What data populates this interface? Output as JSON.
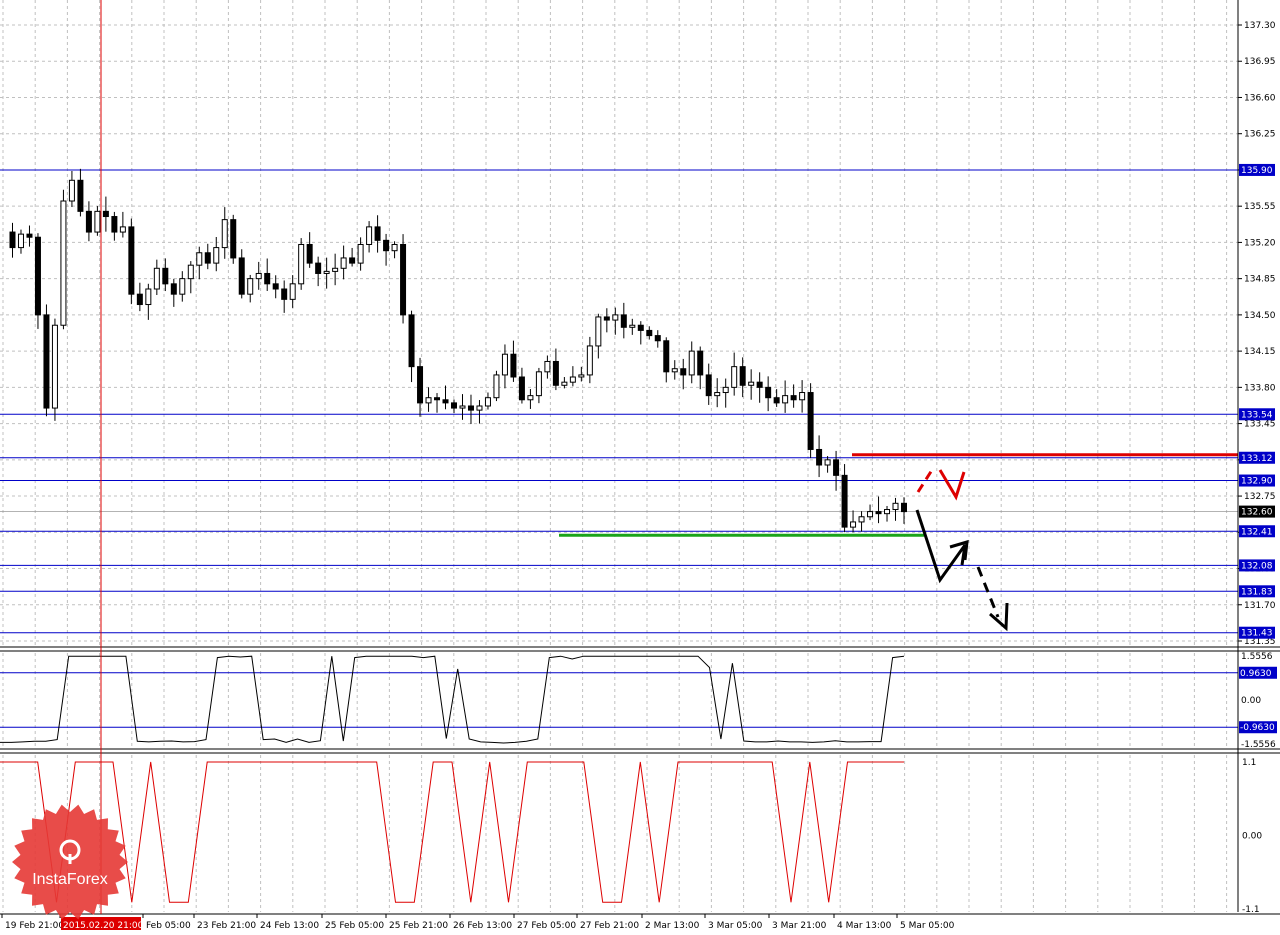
{
  "colors": {
    "grid": "#c0c0c0",
    "level_line": "#0000c8",
    "level_label_bg": "#0000c8",
    "current_label_bg": "#000000",
    "resistance": "#dd0000",
    "support": "#1aa31a",
    "oscillator": "#000000",
    "signal": "#dd0000",
    "cursor": "#dd0000",
    "logo": "#e53935"
  },
  "chart_data": [
    {
      "type": "candlestick",
      "panel": "price",
      "y_ticks": [
        "137.30",
        "136.95",
        "136.60",
        "136.25",
        "135.90",
        "135.55",
        "135.20",
        "134.85",
        "134.50",
        "134.15",
        "133.80",
        "133.45",
        "133.10",
        "132.75",
        "132.40",
        "132.05",
        "131.70",
        "131.35"
      ],
      "ylim": [
        131.35,
        137.3
      ],
      "levels": [
        "135.90",
        "133.54",
        "133.12",
        "132.90",
        "132.41",
        "132.08",
        "131.83",
        "131.43"
      ],
      "current_price": "132.60",
      "resistance_level": 133.12,
      "support_level": 132.41,
      "close_path": [
        135.3,
        135.15,
        135.28,
        135.25,
        134.5,
        133.6,
        134.4,
        135.6,
        135.8,
        135.5,
        135.3,
        135.5,
        135.45,
        135.3,
        135.35,
        134.7,
        134.6,
        134.75,
        134.95,
        134.8,
        134.7,
        134.85,
        134.98,
        135.1,
        135.0,
        135.15,
        135.42,
        135.05,
        134.7,
        134.85,
        134.9,
        134.8,
        134.75,
        134.65,
        134.8,
        135.18,
        135.0,
        134.9,
        134.92,
        134.95,
        135.05,
        135.0,
        135.18,
        135.35,
        135.22,
        135.12,
        135.18,
        134.5,
        134.0,
        133.65,
        133.7,
        133.68,
        133.65,
        133.6,
        133.62,
        133.58,
        133.62,
        133.7,
        133.92,
        134.12,
        133.9,
        133.68,
        133.72,
        133.95,
        134.05,
        133.82,
        133.85,
        133.9,
        133.92,
        134.2,
        134.48,
        134.45,
        134.5,
        134.38,
        134.4,
        134.35,
        134.3,
        134.25,
        133.95,
        133.98,
        133.92,
        134.15,
        133.92,
        133.72,
        133.75,
        133.8,
        134.0,
        133.82,
        133.85,
        133.8,
        133.7,
        133.65,
        133.72,
        133.68,
        133.75,
        133.2,
        133.05,
        133.1,
        132.95,
        132.45,
        132.5,
        132.55,
        132.6,
        132.58,
        132.62,
        132.68,
        132.6
      ],
      "last_value": "132.60"
    },
    {
      "type": "line",
      "panel": "oscillator",
      "y_ticks": [
        "1.5556",
        "0.9630",
        "0.00",
        "-0.9630",
        "-1.5556"
      ],
      "ylim": [
        -1.5556,
        1.5556
      ],
      "levels": [
        "0.9630",
        "-0.9630"
      ],
      "values": [
        -1.5,
        -1.5,
        -1.48,
        -1.46,
        -1.46,
        -1.4,
        1.55,
        1.55,
        1.55,
        1.55,
        1.55,
        1.55,
        -1.46,
        -1.48,
        -1.46,
        -1.45,
        -1.48,
        -1.47,
        -1.4,
        1.5,
        1.55,
        1.52,
        1.55,
        -1.4,
        -1.38,
        -1.5,
        -1.38,
        -1.5,
        -1.44,
        1.55,
        -1.45,
        1.5,
        1.55,
        1.55,
        1.55,
        1.55,
        1.55,
        1.5,
        1.55,
        -1.36,
        1.1,
        -1.38,
        -1.48,
        -1.5,
        -1.52,
        -1.5,
        -1.46,
        -1.38,
        1.5,
        1.55,
        1.45,
        1.55,
        1.55,
        1.55,
        1.55,
        1.55,
        1.55,
        1.55,
        1.55,
        1.55,
        1.55,
        1.55,
        1.15,
        -1.38,
        1.3,
        -1.45,
        -1.48,
        -1.48,
        -1.45,
        -1.48,
        -1.48,
        -1.5,
        -1.48,
        -1.44,
        -1.48,
        -1.48,
        -1.47,
        -1.47,
        1.5,
        1.55
      ]
    },
    {
      "type": "line",
      "panel": "signal",
      "y_ticks": [
        "1.1",
        "0.00",
        "-1.1"
      ],
      "ylim": [
        -1.1,
        1.1
      ],
      "values": [
        1.1,
        1.1,
        1.1,
        -1.0,
        1.1,
        1.1,
        1.1,
        -1.0,
        1.1,
        -1.0,
        -1.0,
        1.1,
        1.1,
        1.1,
        1.1,
        1.1,
        1.1,
        1.1,
        1.1,
        1.1,
        1.1,
        -1.0,
        -1.0,
        1.1,
        1.1,
        -1.0,
        1.1,
        -1.0,
        1.1,
        1.1,
        1.1,
        1.1,
        -1.0,
        -1.0,
        1.1,
        -1.0,
        1.1,
        1.1,
        1.1,
        1.1,
        1.1,
        1.1,
        -1.0,
        1.1,
        -1.0,
        1.1,
        1.1,
        1.1,
        1.1
      ]
    }
  ],
  "x_axis": {
    "labels": [
      "19 Feb 21:00",
      "2015.02.20 21:00",
      "Feb 05:00",
      "23 Feb 21:00",
      "24 Feb 13:00",
      "25 Feb 05:00",
      "25 Feb 21:00",
      "26 Feb 13:00",
      "27 Feb 05:00",
      "27 Feb 21:00",
      "2 Mar 13:00",
      "3 Mar 05:00",
      "3 Mar 21:00",
      "4 Mar 13:00",
      "5 Mar 05:00"
    ],
    "highlighted_index": 1
  },
  "logo": {
    "text": "InstaForex"
  }
}
